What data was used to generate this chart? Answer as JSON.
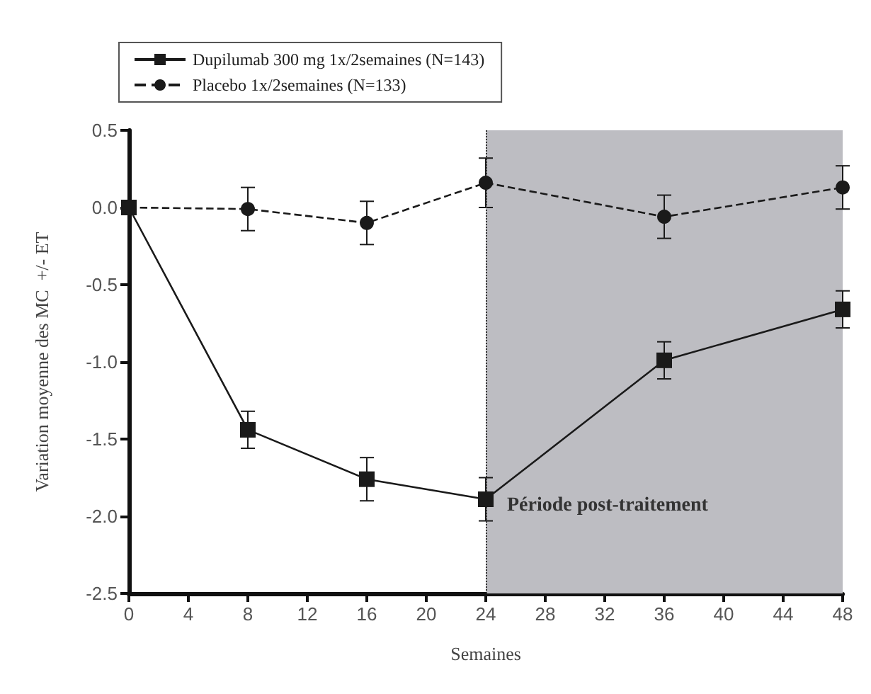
{
  "chart_data": {
    "type": "line",
    "xlabel": "Semaines",
    "ylabel": "Variation moyenne des MC  +/- ET",
    "x": [
      0,
      8,
      16,
      24,
      36,
      48
    ],
    "series": [
      {
        "name": "Dupilumab 300 mg 1x/2semaines (N=143)",
        "color": "#1a1a1a",
        "marker": "square",
        "line_style": "solid",
        "values": [
          0,
          -1.44,
          -1.76,
          -1.89,
          -0.99,
          -0.66
        ],
        "errors": [
          null,
          0.12,
          0.14,
          0.14,
          0.12,
          0.12
        ]
      },
      {
        "name": "Placebo 1x/2semaines (N=133)",
        "color": "#1a1a1a",
        "marker": "circle",
        "line_style": "dashed",
        "values": [
          0,
          -0.01,
          -0.1,
          0.16,
          -0.06,
          0.13
        ],
        "errors": [
          null,
          0.14,
          0.14,
          0.16,
          0.14,
          0.14
        ]
      }
    ],
    "xlim": [
      0,
      48
    ],
    "xticks": [
      0,
      4,
      8,
      12,
      16,
      20,
      24,
      28,
      32,
      36,
      40,
      44,
      48
    ],
    "ylim": [
      -2.5,
      0.5
    ],
    "yticks": [
      -2.5,
      {
        "value": -2,
        "label": "-2.0"
      },
      -1.5,
      {
        "value": -1,
        "label": "-1.0"
      },
      -0.5,
      {
        "value": 0,
        "label": "0.0"
      },
      0.5
    ],
    "bands": [
      {
        "axis": "x",
        "from": 24,
        "to": 48,
        "label": "Période post-traitement",
        "color": "#bdbdc2"
      }
    ],
    "ref_lines": [
      {
        "axis": "x",
        "value": 24,
        "label": null,
        "line_style": "dotted",
        "color": "#333333"
      }
    ],
    "grid": false,
    "legend": "top left"
  }
}
